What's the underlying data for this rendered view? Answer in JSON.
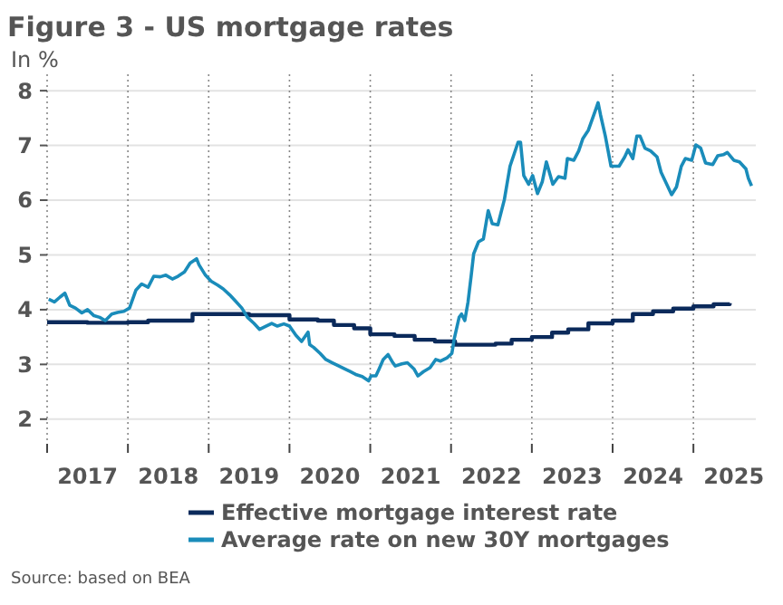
{
  "chart_data": {
    "type": "line",
    "title": "Figure 3 - US mortgage rates",
    "ylabel": "In %",
    "annotations": [
      "Source: based on BEA"
    ],
    "xlim": [
      2017,
      2025.75
    ],
    "ylim": [
      1.55,
      8.3
    ],
    "xticks": [
      {
        "value": 2017,
        "label": null
      },
      {
        "value": 2017.5,
        "label": "2017"
      },
      {
        "value": 2018,
        "label": null
      },
      {
        "value": 2018.5,
        "label": "2018"
      },
      {
        "value": 2019,
        "label": null
      },
      {
        "value": 2019.5,
        "label": "2019"
      },
      {
        "value": 2020,
        "label": null
      },
      {
        "value": 2020.5,
        "label": "2020"
      },
      {
        "value": 2021,
        "label": null
      },
      {
        "value": 2021.5,
        "label": "2021"
      },
      {
        "value": 2022,
        "label": null
      },
      {
        "value": 2022.5,
        "label": "2022"
      },
      {
        "value": 2023,
        "label": null
      },
      {
        "value": 2023.5,
        "label": "2023"
      },
      {
        "value": 2024,
        "label": null
      },
      {
        "value": 2024.5,
        "label": "2024"
      },
      {
        "value": 2025,
        "label": null
      },
      {
        "value": 2025.5,
        "label": "2025"
      }
    ],
    "yticks": [
      2,
      3,
      4,
      5,
      6,
      7,
      8
    ],
    "grid": true,
    "legend": "bottom",
    "line_style": "solid",
    "series": [
      {
        "name": "Effective mortgage interest rate",
        "type": "step",
        "color": "#0b2a5b",
        "x": [
          2017.0,
          2017.5,
          2018.0,
          2018.25,
          2018.8,
          2019.5,
          2020.0,
          2020.35,
          2020.55,
          2020.8,
          2021.0,
          2021.3,
          2021.55,
          2021.8,
          2022.05,
          2022.55,
          2022.75,
          2023.0,
          2023.25,
          2023.45,
          2023.7,
          2024.0,
          2024.25,
          2024.5,
          2024.75,
          2025.0,
          2025.25,
          2025.45
        ],
        "values": [
          3.77,
          3.76,
          3.77,
          3.8,
          3.92,
          3.9,
          3.82,
          3.8,
          3.72,
          3.66,
          3.55,
          3.52,
          3.45,
          3.42,
          3.36,
          3.38,
          3.45,
          3.5,
          3.58,
          3.64,
          3.75,
          3.8,
          3.92,
          3.97,
          4.02,
          4.06,
          4.1,
          4.12
        ]
      },
      {
        "name": "Average rate on new 30Y mortgages",
        "color": "#1a8cba",
        "x": [
          2017.02,
          2017.09,
          2017.16,
          2017.22,
          2017.28,
          2017.35,
          2017.43,
          2017.5,
          2017.58,
          2017.65,
          2017.72,
          2017.8,
          2017.87,
          2017.95,
          2018.02,
          2018.1,
          2018.17,
          2018.25,
          2018.32,
          2018.4,
          2018.47,
          2018.55,
          2018.62,
          2018.7,
          2018.77,
          2018.85,
          2018.88,
          2018.96,
          2019.03,
          2019.11,
          2019.18,
          2019.26,
          2019.33,
          2019.41,
          2019.48,
          2019.56,
          2019.63,
          2019.71,
          2019.78,
          2019.85,
          2019.93,
          2020.0,
          2020.08,
          2020.15,
          2020.23,
          2020.25,
          2020.3,
          2020.38,
          2020.45,
          2020.53,
          2020.6,
          2020.68,
          2020.75,
          2020.83,
          2020.9,
          2020.98,
          2021.01,
          2021.07,
          2021.11,
          2021.16,
          2021.22,
          2021.28,
          2021.31,
          2021.39,
          2021.46,
          2021.54,
          2021.59,
          2021.66,
          2021.74,
          2021.81,
          2021.87,
          2021.95,
          2022.01,
          2022.04,
          2022.1,
          2022.13,
          2022.17,
          2022.21,
          2022.25,
          2022.28,
          2022.34,
          2022.4,
          2022.46,
          2022.51,
          2022.58,
          2022.66,
          2022.73,
          2022.78,
          2022.83,
          2022.86,
          2022.9,
          2022.96,
          2023.01,
          2023.07,
          2023.13,
          2023.18,
          2023.26,
          2023.33,
          2023.41,
          2023.44,
          2023.52,
          2023.58,
          2023.63,
          2023.7,
          2023.78,
          2023.82,
          2023.85,
          2023.91,
          2023.98,
          2024.08,
          2024.15,
          2024.19,
          2024.25,
          2024.3,
          2024.34,
          2024.4,
          2024.47,
          2024.55,
          2024.6,
          2024.67,
          2024.73,
          2024.79,
          2024.85,
          2024.9,
          2024.98,
          2025.03,
          2025.09,
          2025.15,
          2025.24,
          2025.3,
          2025.37,
          2025.42,
          2025.5,
          2025.57,
          2025.65,
          2025.68,
          2025.72
        ],
        "values": [
          4.19,
          4.14,
          4.23,
          4.3,
          4.08,
          4.03,
          3.94,
          4.0,
          3.89,
          3.86,
          3.8,
          3.92,
          3.95,
          3.97,
          4.03,
          4.36,
          4.47,
          4.41,
          4.61,
          4.6,
          4.63,
          4.56,
          4.61,
          4.69,
          4.85,
          4.93,
          4.82,
          4.63,
          4.52,
          4.45,
          4.38,
          4.27,
          4.16,
          4.03,
          3.86,
          3.75,
          3.64,
          3.7,
          3.75,
          3.7,
          3.74,
          3.7,
          3.53,
          3.42,
          3.59,
          3.36,
          3.31,
          3.2,
          3.09,
          3.03,
          2.98,
          2.92,
          2.87,
          2.81,
          2.78,
          2.7,
          2.79,
          2.79,
          2.92,
          3.09,
          3.18,
          3.03,
          2.97,
          3.01,
          3.03,
          2.92,
          2.79,
          2.87,
          2.94,
          3.09,
          3.06,
          3.12,
          3.2,
          3.47,
          3.86,
          3.92,
          3.8,
          4.14,
          4.63,
          5.02,
          5.24,
          5.29,
          5.81,
          5.57,
          5.55,
          6.01,
          6.62,
          6.84,
          7.06,
          7.06,
          6.45,
          6.29,
          6.45,
          6.12,
          6.34,
          6.7,
          6.29,
          6.43,
          6.4,
          6.76,
          6.73,
          6.9,
          7.12,
          7.28,
          7.61,
          7.78,
          7.56,
          7.17,
          6.62,
          6.62,
          6.79,
          6.92,
          6.76,
          7.17,
          7.17,
          6.95,
          6.9,
          6.79,
          6.51,
          6.29,
          6.1,
          6.24,
          6.62,
          6.76,
          6.73,
          7.01,
          6.95,
          6.68,
          6.65,
          6.81,
          6.83,
          6.87,
          6.73,
          6.7,
          6.57,
          6.4,
          6.26
        ]
      }
    ]
  }
}
